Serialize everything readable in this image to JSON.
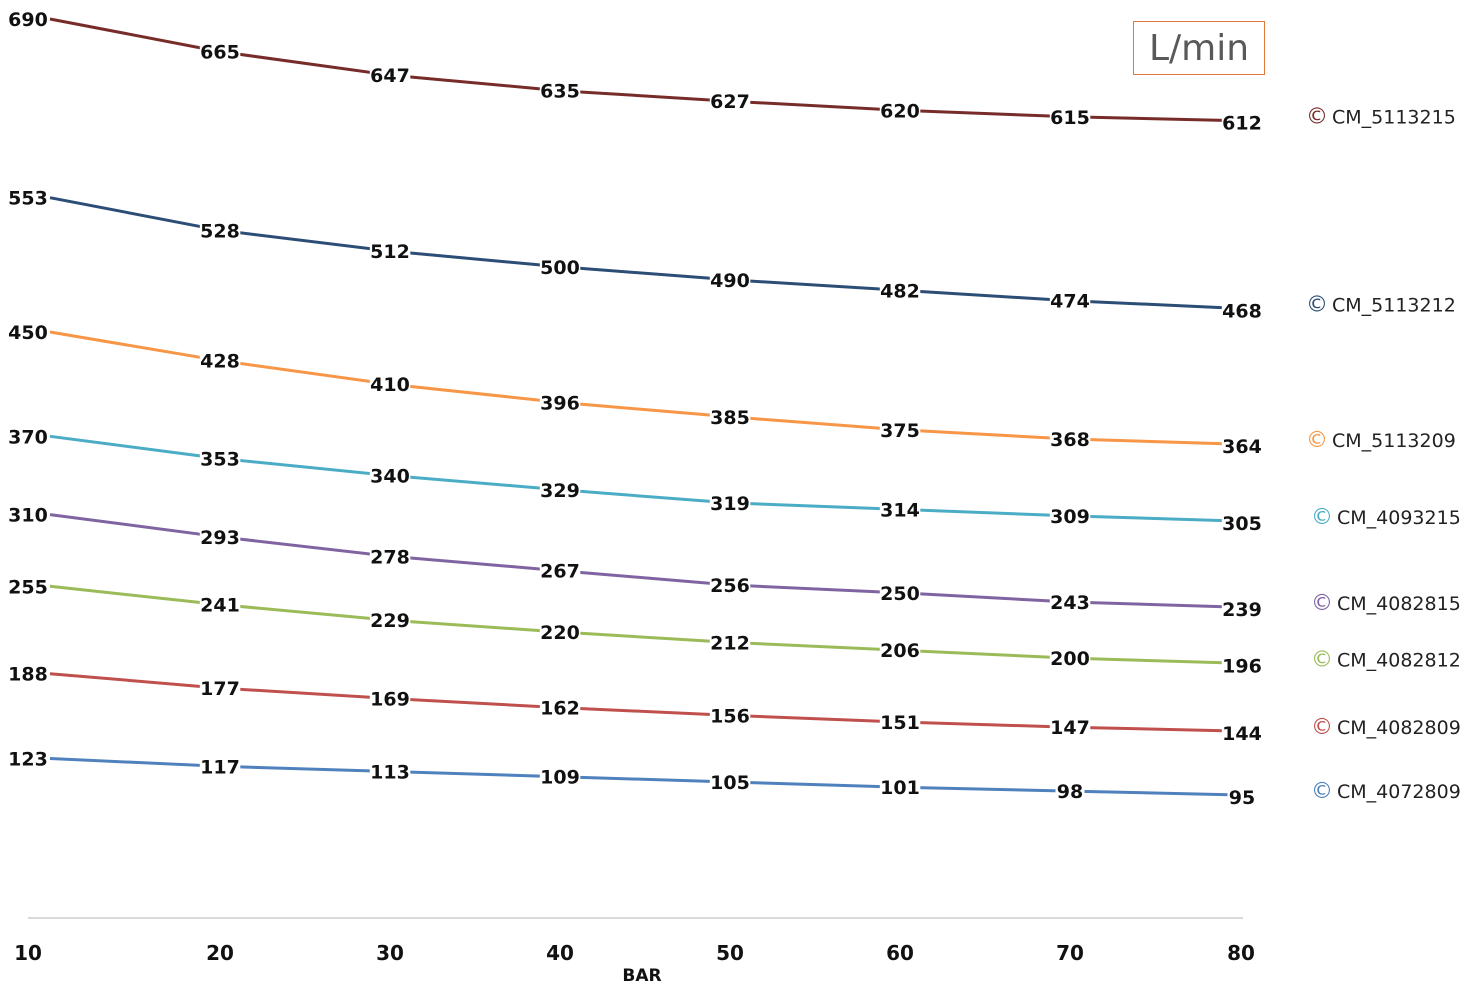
{
  "chart_data": {
    "type": "line",
    "xlabel": "BAR",
    "unit_label": "L/min",
    "x": [
      10,
      20,
      30,
      40,
      50,
      60,
      70,
      80
    ],
    "xlim": [
      10,
      80
    ],
    "ylim": [
      0,
      700
    ],
    "grid": false,
    "legend_position": "right",
    "series": [
      {
        "name": "CM_5113215",
        "color": "#772c2a",
        "values": [
          690,
          665,
          647,
          635,
          627,
          620,
          615,
          612
        ]
      },
      {
        "name": "CM_5113212",
        "color": "#2c4d75",
        "values": [
          553,
          528,
          512,
          500,
          490,
          482,
          474,
          468
        ]
      },
      {
        "name": "CM_5113209",
        "color": "#f79646",
        "values": [
          450,
          428,
          410,
          396,
          385,
          375,
          368,
          364
        ]
      },
      {
        "name": "CM_4093215",
        "color": "#4bacc6",
        "values": [
          370,
          353,
          340,
          329,
          319,
          314,
          309,
          305
        ]
      },
      {
        "name": "CM_4082815",
        "color": "#8064a2",
        "values": [
          310,
          293,
          278,
          267,
          256,
          250,
          243,
          239
        ]
      },
      {
        "name": "CM_4082812",
        "color": "#9bbb59",
        "values": [
          255,
          241,
          229,
          220,
          212,
          206,
          200,
          196
        ]
      },
      {
        "name": "CM_4082809",
        "color": "#c0504d",
        "values": [
          188,
          177,
          169,
          162,
          156,
          151,
          147,
          144
        ]
      },
      {
        "name": "CM_4072809",
        "color": "#4f81bd",
        "values": [
          123,
          117,
          113,
          109,
          105,
          101,
          98,
          95
        ]
      }
    ],
    "legend_symbol": "©"
  }
}
